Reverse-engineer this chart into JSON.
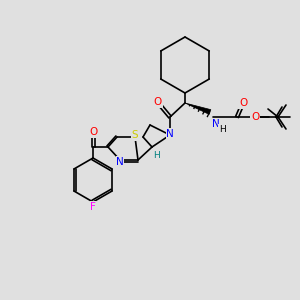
{
  "bg_color": "#e0e0e0",
  "bond_color": "#000000",
  "atom_colors": {
    "O": "#ff0000",
    "N": "#0000ff",
    "S": "#cccc00",
    "F": "#ff00ff",
    "H_stereo": "#008080",
    "stereo_bond": "#0000cc"
  },
  "line_width": 1.2,
  "font_size": 7.5
}
